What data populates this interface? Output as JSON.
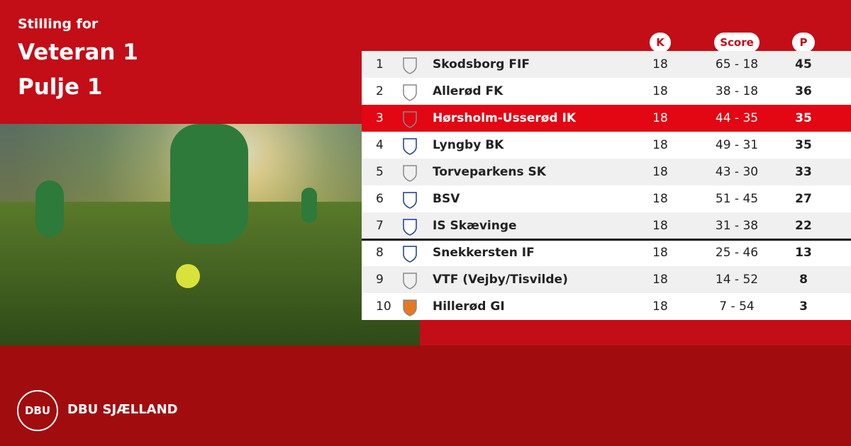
{
  "header": {
    "subtitle": "Stilling for",
    "title_lines": [
      "Veteran 1",
      "Pulje 1"
    ]
  },
  "table": {
    "columns": [
      "K",
      "Score",
      "P"
    ],
    "rows": [
      [
        "1",
        "Skodsborg FIF",
        "18",
        "65 - 18",
        "45"
      ],
      [
        "2",
        "Allerød FK",
        "18",
        "38 - 18",
        "36"
      ],
      [
        "3",
        "Hørsholm-Usserød IK",
        "18",
        "44 - 35",
        "35"
      ],
      [
        "4",
        "Lyngby BK",
        "18",
        "49 - 31",
        "35"
      ],
      [
        "5",
        "Torveparkens SK",
        "18",
        "43 - 30",
        "33"
      ],
      [
        "6",
        "BSV",
        "18",
        "51 - 45",
        "27"
      ],
      [
        "7",
        "IS Skævinge",
        "18",
        "31 - 38",
        "22"
      ],
      [
        "8",
        "Snekkersten IF",
        "18",
        "25 - 46",
        "13"
      ],
      [
        "9",
        "VTF (Vejby/Tisvilde)",
        "18",
        "14 - 52",
        "8"
      ],
      [
        "10",
        "Hillerød GI",
        "18",
        "7 - 54",
        "3"
      ]
    ]
  },
  "footer": {
    "logo": "DBU",
    "brand": "DBU SJÆLLAND"
  }
}
